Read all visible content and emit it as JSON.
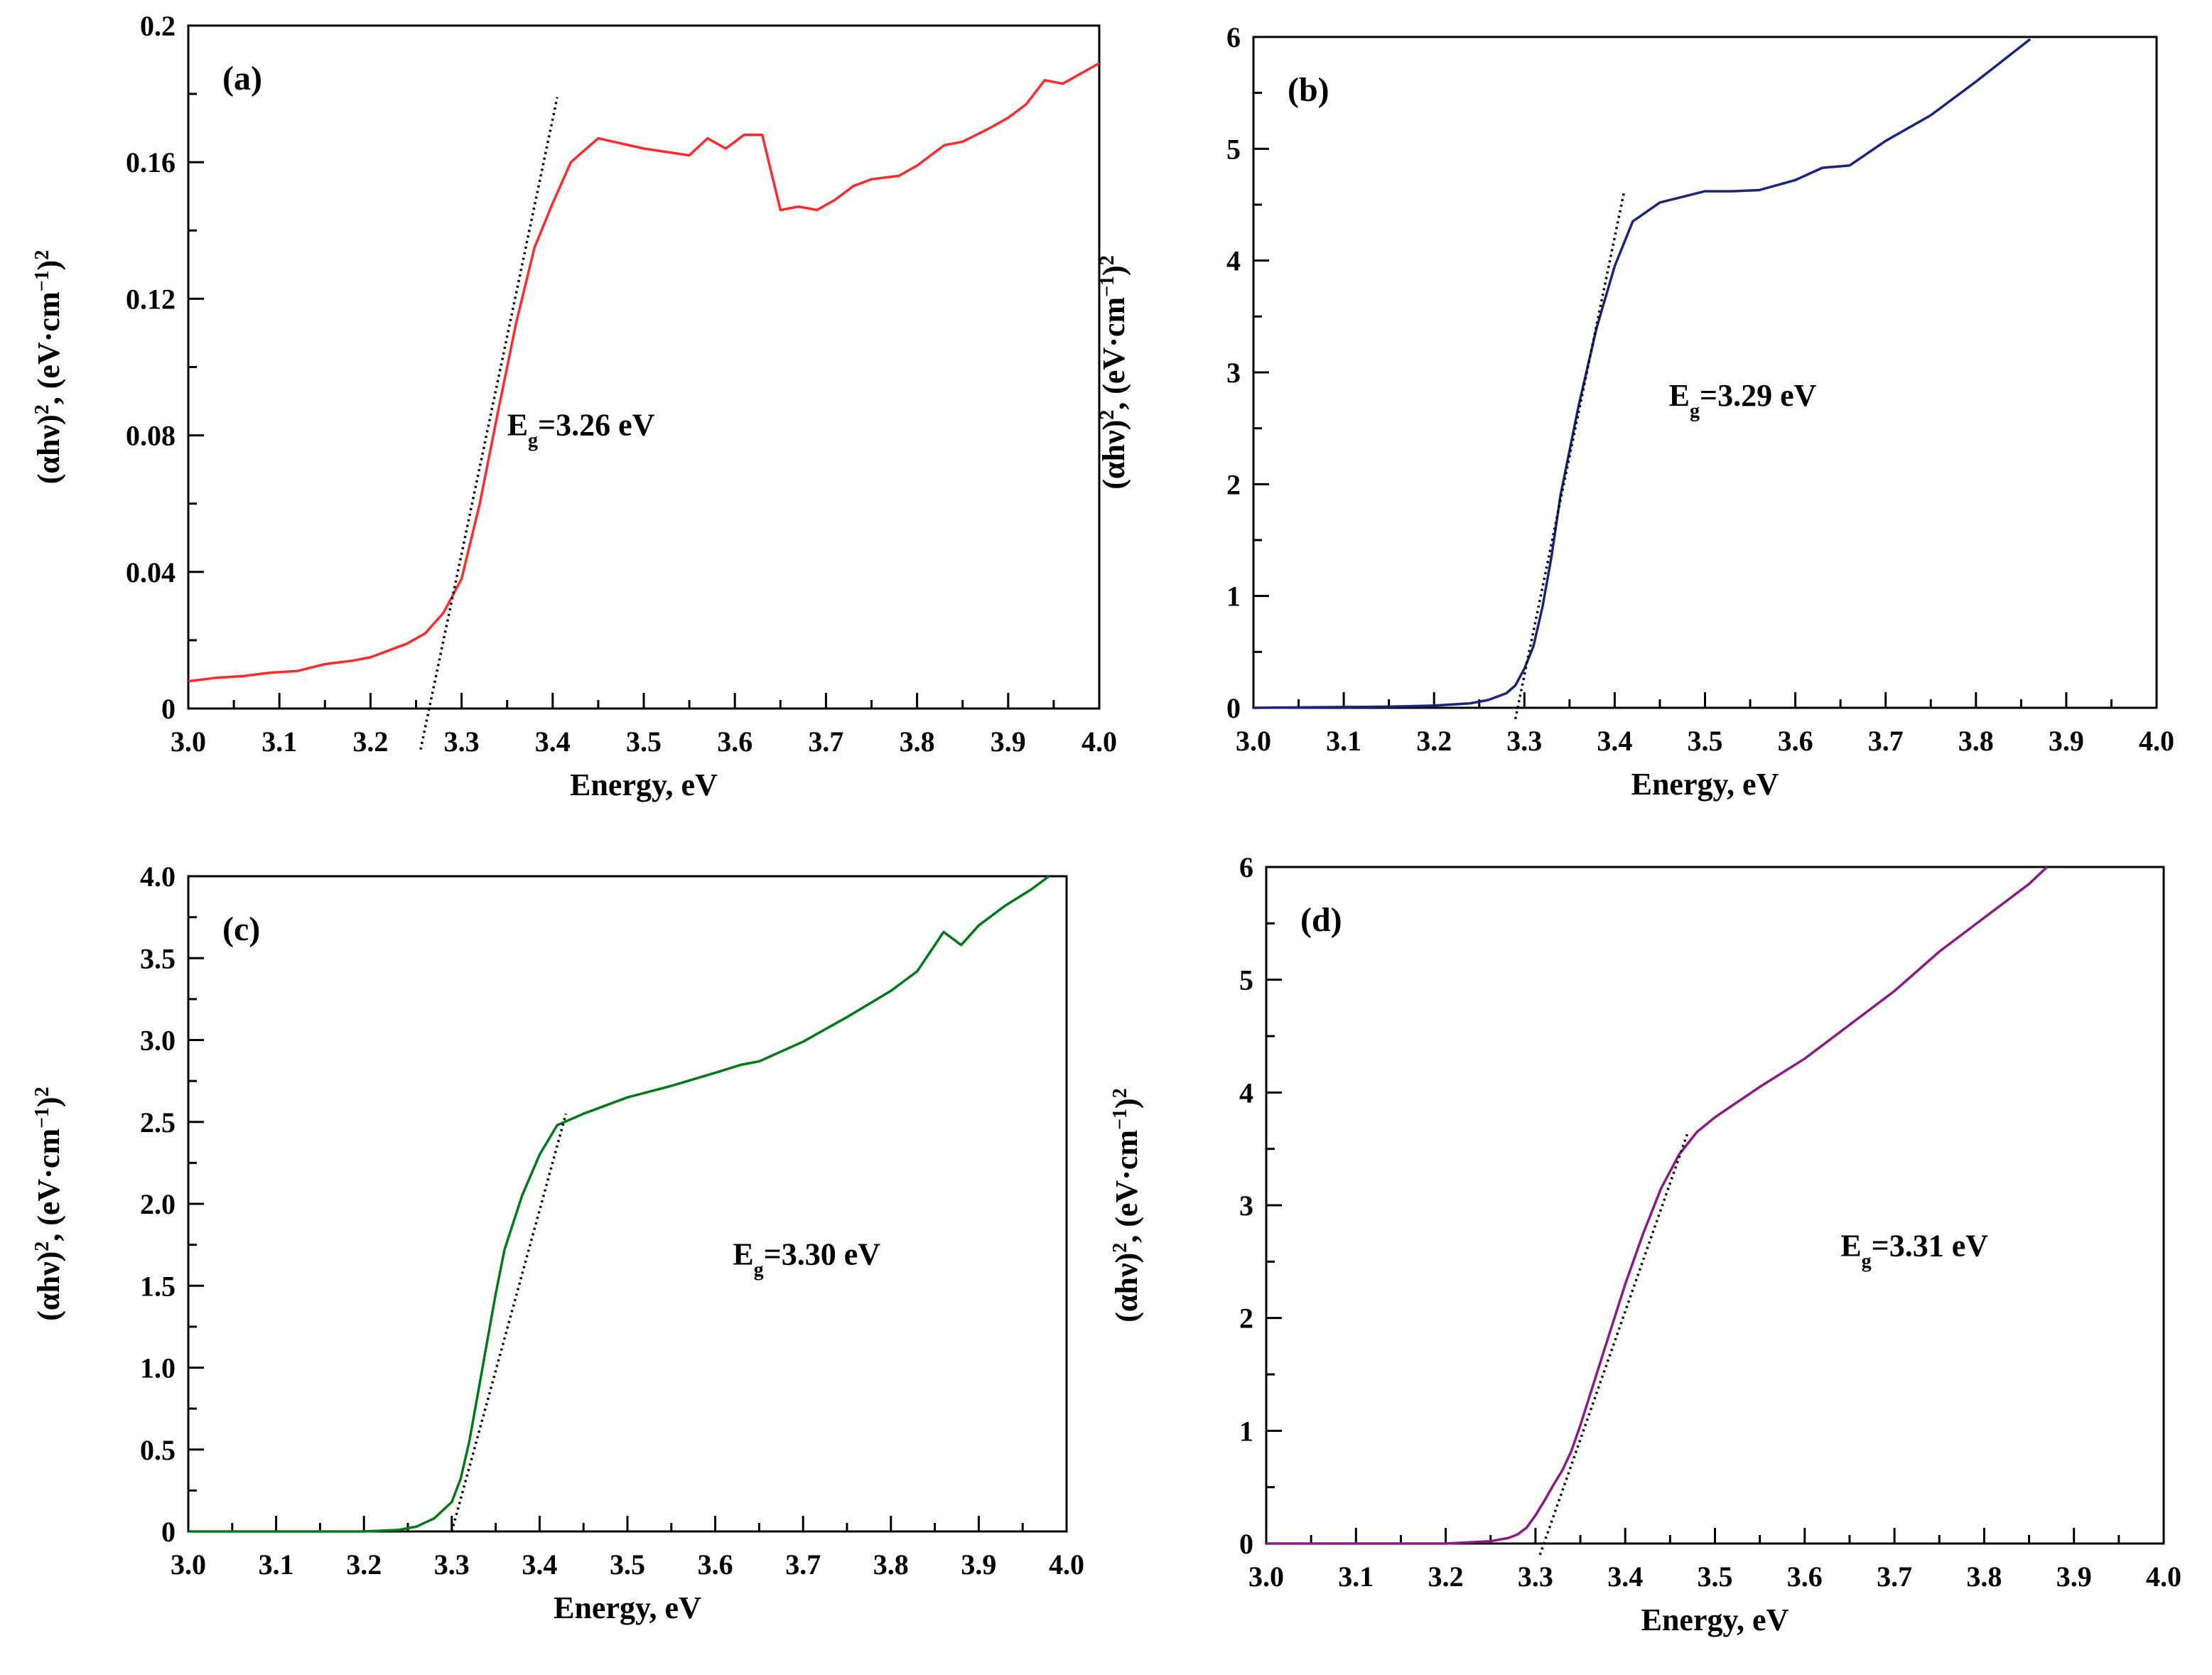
{
  "chart_data": [
    {
      "type": "line",
      "panel": "(a)",
      "title": "",
      "xlabel": "Energy, eV",
      "ylabel_parts": [
        "(αhν)",
        "2",
        ", (eV·cm",
        "−1",
        ")",
        "2"
      ],
      "xlim": [
        3.0,
        4.0
      ],
      "ylim": [
        0,
        0.2
      ],
      "xticks": [
        3.0,
        3.1,
        3.2,
        3.3,
        3.4,
        3.5,
        3.6,
        3.7,
        3.8,
        3.9,
        4.0
      ],
      "xtick_labels": [
        "3.0",
        "3.1",
        "3.2",
        "3.3",
        "3.4",
        "3.5",
        "3.6",
        "3.7",
        "3.8",
        "3.9",
        "4.0"
      ],
      "yticks": [
        0,
        0.04,
        0.08,
        0.12,
        0.16,
        0.2
      ],
      "ytick_labels": [
        "0",
        "0.04",
        "0.08",
        "0.12",
        "0.16",
        "0.2"
      ],
      "annotation": {
        "main": "E",
        "sub": "g",
        "rest": "=3.26 eV",
        "x": 3.35,
        "y": 0.08
      },
      "series": [
        {
          "name": "(a)",
          "color": "#ff2a2a",
          "x": [
            3.0,
            3.03,
            3.06,
            3.09,
            3.12,
            3.15,
            3.18,
            3.2,
            3.22,
            3.24,
            3.26,
            3.28,
            3.3,
            3.32,
            3.34,
            3.36,
            3.38,
            3.4,
            3.42,
            3.45,
            3.5,
            3.55,
            3.57,
            3.59,
            3.61,
            3.63,
            3.65,
            3.67,
            3.69,
            3.71,
            3.73,
            3.75,
            3.78,
            3.8,
            3.83,
            3.85,
            3.88,
            3.9,
            3.92,
            3.94,
            3.96,
            3.98,
            4.0
          ],
          "y": [
            0.008,
            0.009,
            0.0095,
            0.0105,
            0.011,
            0.013,
            0.014,
            0.015,
            0.017,
            0.019,
            0.022,
            0.028,
            0.038,
            0.06,
            0.087,
            0.113,
            0.135,
            0.148,
            0.16,
            0.167,
            0.164,
            0.162,
            0.167,
            0.164,
            0.168,
            0.168,
            0.146,
            0.147,
            0.146,
            0.149,
            0.153,
            0.155,
            0.156,
            0.159,
            0.165,
            0.166,
            0.17,
            0.173,
            0.177,
            0.184,
            0.183,
            0.186,
            0.189
          ]
        }
      ],
      "tangent": {
        "x": [
          3.255,
          3.405
        ],
        "y": [
          -0.012,
          0.179
        ]
      }
    },
    {
      "type": "line",
      "panel": "(b)",
      "title": "",
      "xlabel": "Energy, eV",
      "ylabel_parts": [
        "(αhν)",
        "2",
        ", (eV·cm",
        "−1",
        ")",
        "2"
      ],
      "xlim": [
        3.0,
        4.0
      ],
      "ylim": [
        0,
        6
      ],
      "xticks": [
        3.0,
        3.1,
        3.2,
        3.3,
        3.4,
        3.5,
        3.6,
        3.7,
        3.8,
        3.9,
        4.0
      ],
      "xtick_labels": [
        "3.0",
        "3.1",
        "3.2",
        "3.3",
        "3.4",
        "3.5",
        "3.6",
        "3.7",
        "3.8",
        "3.9",
        "4.0"
      ],
      "yticks": [
        0,
        1,
        2,
        3,
        4,
        5,
        6
      ],
      "ytick_labels": [
        "0",
        "1",
        "2",
        "3",
        "4",
        "5",
        "6"
      ],
      "annotation": {
        "main": "E",
        "sub": "g",
        "rest": "=3.29 eV",
        "x": 3.46,
        "y": 2.7
      },
      "series": [
        {
          "name": "(b)",
          "color": "#1a237e",
          "x": [
            3.0,
            3.15,
            3.2,
            3.24,
            3.26,
            3.28,
            3.29,
            3.3,
            3.31,
            3.32,
            3.33,
            3.34,
            3.36,
            3.38,
            3.4,
            3.42,
            3.45,
            3.48,
            3.5,
            3.53,
            3.56,
            3.6,
            3.63,
            3.66,
            3.7,
            3.75,
            3.8,
            3.86
          ],
          "y": [
            0.0,
            0.01,
            0.02,
            0.04,
            0.07,
            0.13,
            0.2,
            0.35,
            0.55,
            0.9,
            1.35,
            1.9,
            2.7,
            3.4,
            3.95,
            4.35,
            4.52,
            4.58,
            4.62,
            4.62,
            4.63,
            4.72,
            4.83,
            4.85,
            5.07,
            5.3,
            5.6,
            5.98
          ]
        }
      ],
      "tangent": {
        "x": [
          3.29,
          3.41
        ],
        "y": [
          -0.1,
          4.6
        ]
      }
    },
    {
      "type": "line",
      "panel": "(c)",
      "title": "",
      "xlabel": "Energy, eV",
      "ylabel_parts": [
        "(αhν)",
        "2",
        ", (eV·cm",
        "−1",
        ")",
        "2"
      ],
      "xlim": [
        3.0,
        4.0
      ],
      "ylim": [
        0,
        4.0
      ],
      "xticks": [
        3.0,
        3.1,
        3.2,
        3.3,
        3.4,
        3.5,
        3.6,
        3.7,
        3.8,
        3.9,
        4.0
      ],
      "xtick_labels": [
        "3.0",
        "3.1",
        "3.2",
        "3.3",
        "3.4",
        "3.5",
        "3.6",
        "3.7",
        "3.8",
        "3.9",
        "4.0"
      ],
      "yticks": [
        0,
        0.5,
        1.0,
        1.5,
        2.0,
        2.5,
        3.0,
        3.5,
        4.0
      ],
      "ytick_labels": [
        "0",
        "0.5",
        "1.0",
        "1.5",
        "2.0",
        "2.5",
        "3.0",
        "3.5",
        "4.0"
      ],
      "annotation": {
        "main": "E",
        "sub": "g",
        "rest": "=3.30 eV",
        "x": 3.62,
        "y": 1.63
      },
      "series": [
        {
          "name": "(c)",
          "color": "#007a16",
          "x": [
            3.0,
            3.2,
            3.24,
            3.26,
            3.28,
            3.3,
            3.31,
            3.32,
            3.33,
            3.34,
            3.35,
            3.36,
            3.38,
            3.4,
            3.42,
            3.45,
            3.5,
            3.55,
            3.6,
            3.63,
            3.65,
            3.7,
            3.75,
            3.8,
            3.83,
            3.86,
            3.88,
            3.9,
            3.93,
            3.96,
            3.98
          ],
          "y": [
            0.0,
            0.0,
            0.01,
            0.03,
            0.08,
            0.18,
            0.32,
            0.55,
            0.85,
            1.15,
            1.45,
            1.72,
            2.05,
            2.3,
            2.48,
            2.55,
            2.65,
            2.72,
            2.8,
            2.85,
            2.87,
            2.99,
            3.14,
            3.3,
            3.42,
            3.66,
            3.58,
            3.7,
            3.82,
            3.92,
            4.0
          ]
        }
      ],
      "tangent": {
        "x": [
          3.3,
          3.43
        ],
        "y": [
          0.0,
          2.55
        ]
      }
    },
    {
      "type": "line",
      "panel": "(d)",
      "title": "",
      "xlabel": "Energy, eV",
      "ylabel_parts": [
        "(αhν)",
        "2",
        ", (eV·cm",
        "−1",
        ")",
        "2"
      ],
      "xlim": [
        3.0,
        4.0
      ],
      "ylim": [
        0,
        6
      ],
      "xticks": [
        3.0,
        3.1,
        3.2,
        3.3,
        3.4,
        3.5,
        3.6,
        3.7,
        3.8,
        3.9,
        4.0
      ],
      "xtick_labels": [
        "3.0",
        "3.1",
        "3.2",
        "3.3",
        "3.4",
        "3.5",
        "3.6",
        "3.7",
        "3.8",
        "3.9",
        "4.0"
      ],
      "yticks": [
        0,
        1,
        2,
        3,
        4,
        5,
        6
      ],
      "ytick_labels": [
        "0",
        "1",
        "2",
        "3",
        "4",
        "5",
        "6"
      ],
      "annotation": {
        "main": "E",
        "sub": "g",
        "rest": "=3.31 eV",
        "x": 3.64,
        "y": 2.55
      },
      "series": [
        {
          "name": "(d)",
          "color": "#8b1a89",
          "x": [
            3.0,
            3.2,
            3.25,
            3.27,
            3.28,
            3.29,
            3.3,
            3.31,
            3.32,
            3.33,
            3.34,
            3.35,
            3.36,
            3.38,
            3.4,
            3.42,
            3.44,
            3.46,
            3.48,
            3.5,
            3.55,
            3.6,
            3.65,
            3.7,
            3.75,
            3.8,
            3.85,
            3.87
          ],
          "y": [
            0.0,
            0.0,
            0.02,
            0.05,
            0.08,
            0.14,
            0.25,
            0.38,
            0.52,
            0.65,
            0.82,
            1.05,
            1.3,
            1.8,
            2.3,
            2.75,
            3.15,
            3.45,
            3.65,
            3.78,
            4.05,
            4.3,
            4.6,
            4.9,
            5.25,
            5.55,
            5.85,
            6.0
          ]
        }
      ],
      "tangent": {
        "x": [
          3.305,
          3.47
        ],
        "y": [
          -0.1,
          3.65
        ]
      }
    }
  ]
}
